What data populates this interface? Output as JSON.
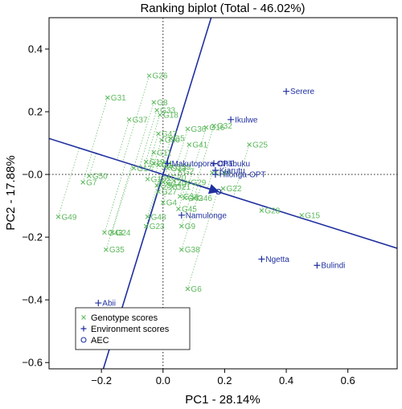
{
  "colors": {
    "genotype": "#5cb85c",
    "environment": "#1f2f9f",
    "aec": "#1f2f9f",
    "guide": "#000000"
  },
  "chart_data": {
    "type": "scatter",
    "title": "Ranking biplot (Total - 46.02%)",
    "xlabel": "PC1 - 28.14%",
    "ylabel": "PC2 - 17.88%",
    "xlim": [
      -0.37,
      0.76
    ],
    "ylim": [
      -0.62,
      0.5
    ],
    "xticks": [
      -0.2,
      0.0,
      0.2,
      0.4,
      0.6
    ],
    "xtick_labels": [
      "−0.2",
      "0.0",
      "0.2",
      "0.4",
      "0.6"
    ],
    "yticks": [
      -0.6,
      -0.4,
      -0.2,
      0.0,
      0.2,
      0.4
    ],
    "ytick_labels": [
      "−0.6",
      "−0.4",
      "−0.2",
      "−0.0",
      "0.2",
      "0.4"
    ],
    "grid": false,
    "legend_placement": "bottom-left",
    "legend": [
      {
        "symbol": "x",
        "label": "Genotype scores"
      },
      {
        "symbol": "+",
        "label": "Environment scores"
      },
      {
        "symbol": "o",
        "label": "AEC"
      }
    ],
    "aec_point": {
      "x": 0.18,
      "y": -0.055
    },
    "aec_abscissa_line": {
      "slope": -0.31
    },
    "aec_ordinate_line": {
      "slope": 3.2
    },
    "environments": [
      {
        "name": "Serere",
        "x": 0.4,
        "y": 0.265
      },
      {
        "name": "Ikulwe",
        "x": 0.22,
        "y": 0.175
      },
      {
        "name": "Makutopora-OPT",
        "x": 0.015,
        "y": 0.035
      },
      {
        "name": "Chabuku",
        "x": 0.165,
        "y": 0.035
      },
      {
        "name": "Kiarutu",
        "x": 0.17,
        "y": 0.013
      },
      {
        "name": "Hilonga-OPT",
        "x": 0.17,
        "y": 0.0
      },
      {
        "name": "Namulonge",
        "x": 0.06,
        "y": -0.13
      },
      {
        "name": "Ngetta",
        "x": 0.32,
        "y": -0.27
      },
      {
        "name": "Bulindi",
        "x": 0.5,
        "y": -0.29
      },
      {
        "name": "Abii",
        "x": -0.21,
        "y": -0.41
      }
    ],
    "genotypes": [
      {
        "name": "G26",
        "x": -0.045,
        "y": 0.315
      },
      {
        "name": "G31",
        "x": -0.18,
        "y": 0.245
      },
      {
        "name": "G8",
        "x": -0.03,
        "y": 0.23
      },
      {
        "name": "G33",
        "x": -0.02,
        "y": 0.205
      },
      {
        "name": "G18",
        "x": -0.01,
        "y": 0.19
      },
      {
        "name": "G37",
        "x": -0.11,
        "y": 0.175
      },
      {
        "name": "G36",
        "x": 0.08,
        "y": 0.145
      },
      {
        "name": "G16",
        "x": 0.14,
        "y": 0.15
      },
      {
        "name": "G32",
        "x": 0.165,
        "y": 0.155
      },
      {
        "name": "G47",
        "x": -0.015,
        "y": 0.13
      },
      {
        "name": "G5",
        "x": 0.025,
        "y": 0.115
      },
      {
        "name": "G30",
        "x": -0.005,
        "y": 0.11
      },
      {
        "name": "G41",
        "x": 0.085,
        "y": 0.095
      },
      {
        "name": "G25",
        "x": 0.28,
        "y": 0.095
      },
      {
        "name": "G11",
        "x": -0.03,
        "y": 0.07
      },
      {
        "name": "G19",
        "x": -0.055,
        "y": 0.04
      },
      {
        "name": "G14",
        "x": -0.03,
        "y": 0.035
      },
      {
        "name": "G1",
        "x": -0.015,
        "y": 0.03
      },
      {
        "name": "G17",
        "x": -0.095,
        "y": 0.02
      },
      {
        "name": "G13",
        "x": 0.015,
        "y": 0.02
      },
      {
        "name": "G39",
        "x": 0.03,
        "y": 0.025
      },
      {
        "name": "G2",
        "x": 0.055,
        "y": 0.01
      },
      {
        "name": "G44",
        "x": 0.16,
        "y": 0.005
      },
      {
        "name": "G50",
        "x": -0.24,
        "y": -0.005
      },
      {
        "name": "G7",
        "x": -0.26,
        "y": -0.025
      },
      {
        "name": "G20",
        "x": 0.015,
        "y": -0.01
      },
      {
        "name": "G12",
        "x": 0.0,
        "y": -0.025
      },
      {
        "name": "G29",
        "x": 0.08,
        "y": -0.025
      },
      {
        "name": "G10",
        "x": -0.05,
        "y": -0.015
      },
      {
        "name": "G3",
        "x": -0.02,
        "y": -0.035
      },
      {
        "name": "G27",
        "x": -0.015,
        "y": -0.055
      },
      {
        "name": "G22",
        "x": 0.195,
        "y": -0.045
      },
      {
        "name": "G4",
        "x": 0.0,
        "y": -0.09
      },
      {
        "name": "G34",
        "x": 0.055,
        "y": -0.07
      },
      {
        "name": "G42",
        "x": 0.07,
        "y": -0.075
      },
      {
        "name": "G46",
        "x": 0.1,
        "y": -0.075
      },
      {
        "name": "G45",
        "x": 0.05,
        "y": -0.11
      },
      {
        "name": "G48",
        "x": -0.05,
        "y": -0.135
      },
      {
        "name": "G15",
        "x": 0.45,
        "y": -0.13
      },
      {
        "name": "G28",
        "x": 0.32,
        "y": -0.115
      },
      {
        "name": "G49",
        "x": -0.34,
        "y": -0.135
      },
      {
        "name": "G9",
        "x": 0.06,
        "y": -0.165
      },
      {
        "name": "G23",
        "x": -0.055,
        "y": -0.165
      },
      {
        "name": "G43",
        "x": -0.19,
        "y": -0.185
      },
      {
        "name": "G24",
        "x": -0.165,
        "y": -0.185
      },
      {
        "name": "G35",
        "x": -0.185,
        "y": -0.24
      },
      {
        "name": "G38",
        "x": 0.06,
        "y": -0.24
      },
      {
        "name": "G6",
        "x": 0.08,
        "y": -0.365
      },
      {
        "name": "G40",
        "x": 0.015,
        "y": -0.03
      },
      {
        "name": "G21",
        "x": 0.03,
        "y": -0.04
      }
    ]
  }
}
